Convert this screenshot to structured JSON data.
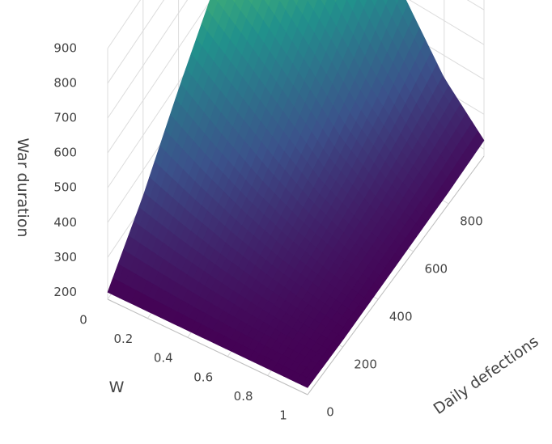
{
  "chart_data": {
    "type": "surface",
    "title": "",
    "zlabel": "War duration",
    "xlabel": "W",
    "ylabel": "Daily defections",
    "x_ticks": [
      "0",
      "0.2",
      "0.4",
      "0.6",
      "0.8",
      "1"
    ],
    "y_ticks": [
      "0",
      "200",
      "400",
      "600",
      "800"
    ],
    "z_ticks": [
      "200",
      "300",
      "400",
      "500",
      "600",
      "700",
      "800",
      "900"
    ],
    "xlim": [
      0,
      1
    ],
    "ylim": [
      0,
      1000
    ],
    "zlim": [
      180,
      900
    ],
    "colorscale": [
      "#440154",
      "#3b528b",
      "#21918c",
      "#5ec962",
      "#fde725"
    ],
    "x": [
      0,
      0.2,
      0.4,
      0.6,
      0.8,
      1.0
    ],
    "y": [
      0,
      200,
      400,
      600,
      800,
      1000
    ],
    "z": [
      [
        200,
        325,
        480,
        620,
        760,
        880
      ],
      [
        200,
        290,
        400,
        530,
        660,
        790
      ],
      [
        200,
        260,
        330,
        430,
        540,
        665
      ],
      [
        200,
        235,
        275,
        325,
        400,
        500
      ],
      [
        200,
        215,
        235,
        255,
        290,
        335
      ],
      [
        200,
        200,
        205,
        210,
        215,
        225
      ]
    ],
    "grid": true
  }
}
